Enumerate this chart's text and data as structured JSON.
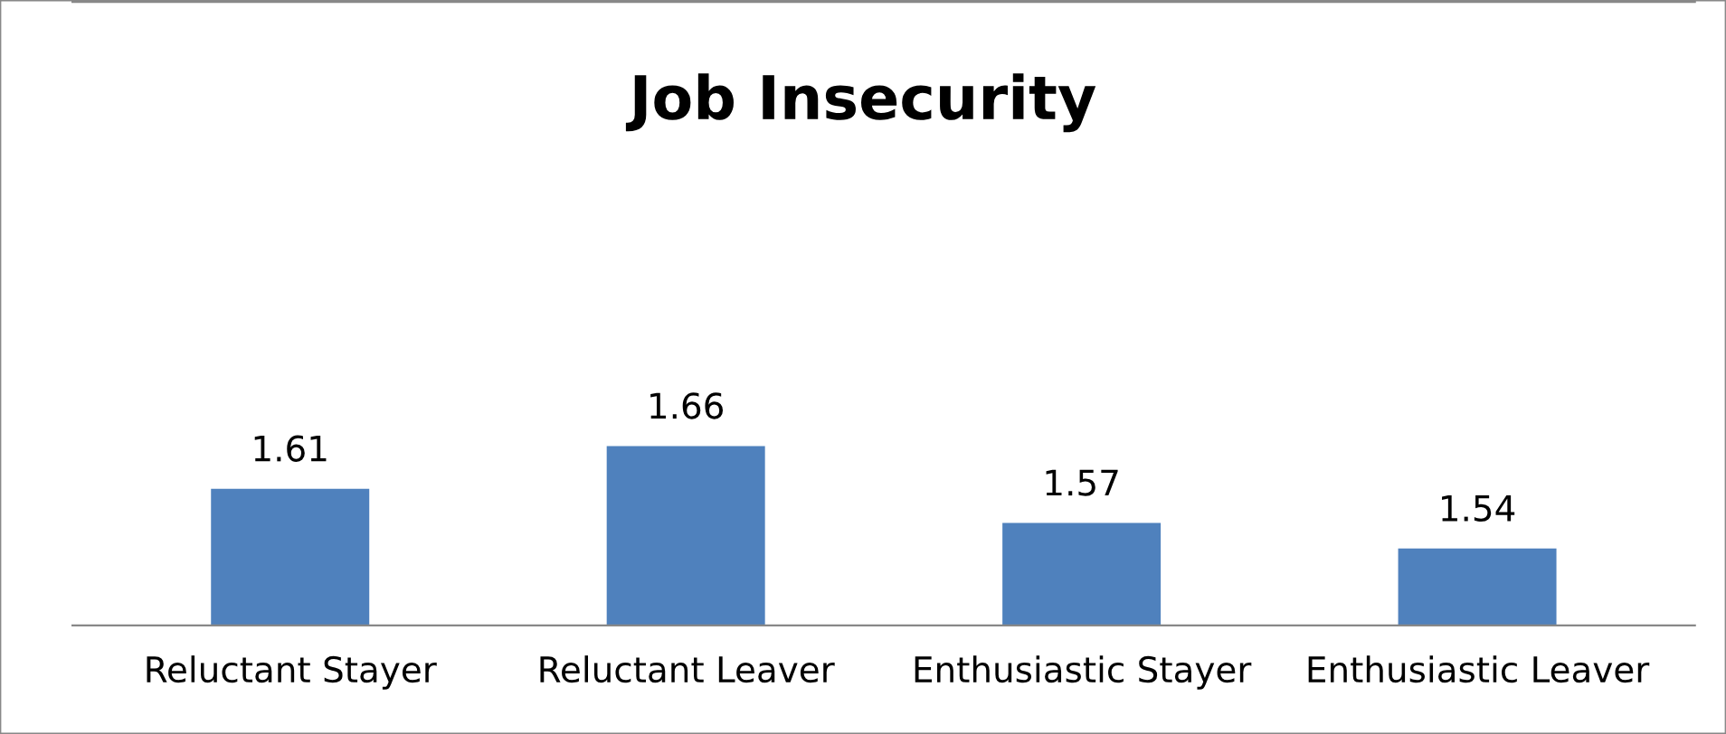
{
  "chart_data": {
    "type": "bar",
    "title": "Job Insecurity",
    "categories": [
      "Reluctant Stayer",
      "Reluctant Leaver",
      "Enthusiastic Stayer",
      "Enthusiastic Leaver"
    ],
    "values": [
      1.61,
      1.66,
      1.57,
      1.54
    ],
    "color": "#4f81bd",
    "ylim": [
      1.45,
      2.18
    ],
    "data_labels": true,
    "grid": false,
    "legend": false,
    "tick_labels": "x"
  }
}
